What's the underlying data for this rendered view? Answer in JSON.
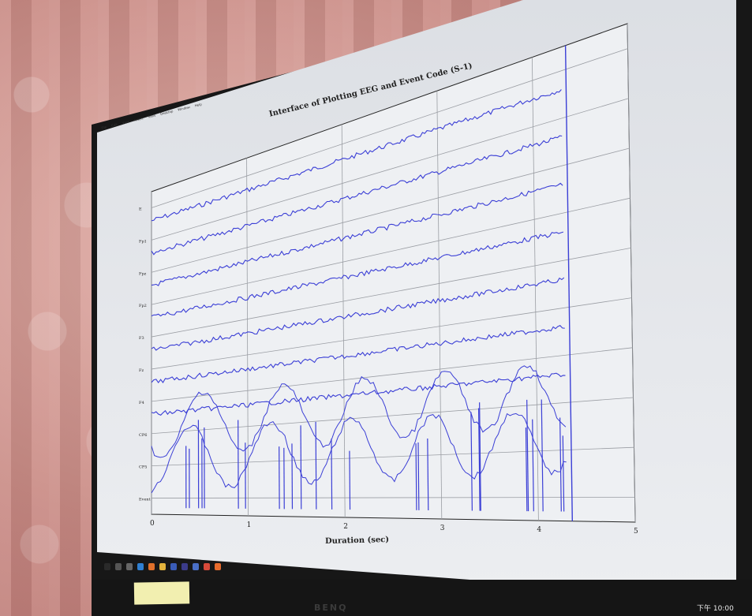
{
  "window": {
    "menu": [
      "File",
      "Edit",
      "View",
      "Insert",
      "Tools",
      "Desktop",
      "Window",
      "Help"
    ]
  },
  "chart_data": {
    "type": "line",
    "title": "Interface of Plotting EEG and Event Code (S-1)",
    "xlabel": "Duration (sec)",
    "ylabel": "",
    "xlim": [
      0,
      5
    ],
    "x_ticks": [
      "0",
      "1",
      "2",
      "3",
      "4",
      "5"
    ],
    "channels": [
      "E",
      "Fp1",
      "Fpz",
      "Fp2",
      "F3",
      "Fz",
      "F4",
      "CP6",
      "CP5",
      "Event"
    ],
    "grid": true,
    "line_color": "#3b3fd6"
  },
  "monitor": {
    "brand": "BENQ",
    "clock": "下午 10:00"
  },
  "colors": {
    "screen_bg": "#e6e8ec",
    "trace": "#3b3fd6",
    "bezel": "#171717",
    "curtain": "#c98f8a"
  }
}
